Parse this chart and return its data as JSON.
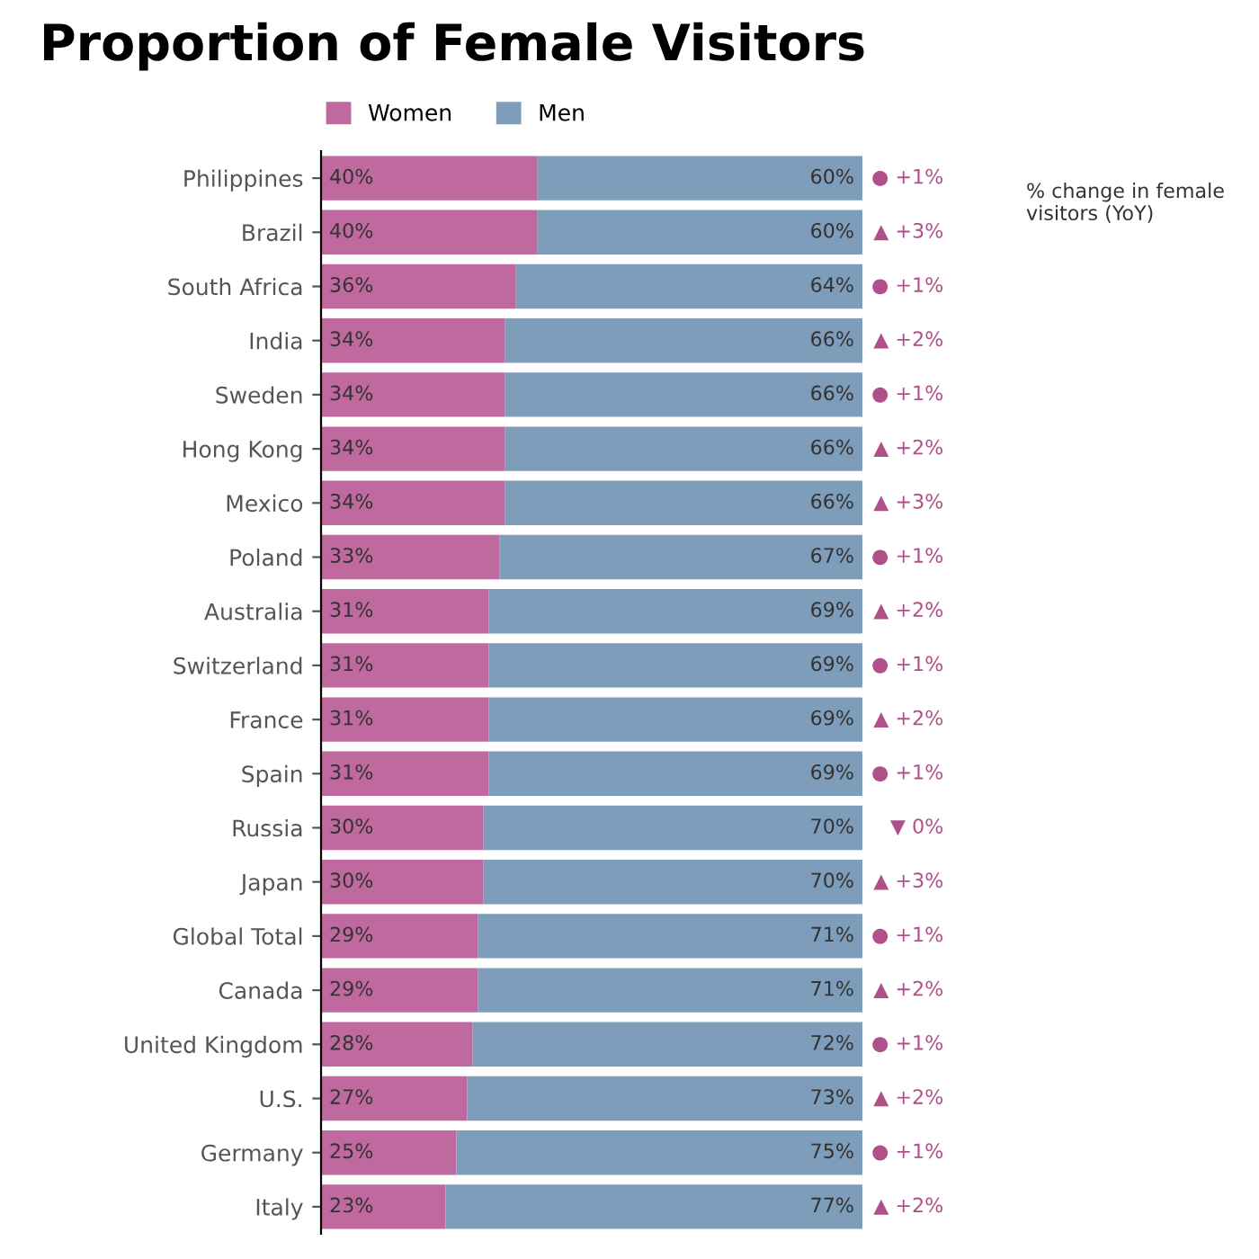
{
  "chart_data": {
    "type": "bar",
    "orientation": "horizontal",
    "stacked": true,
    "title": "Proportion of Female Visitors",
    "categories": [
      "Philippines",
      "Brazil",
      "South Africa",
      "India",
      "Sweden",
      "Hong Kong",
      "Mexico",
      "Poland",
      "Australia",
      "Switzerland",
      "France",
      "Spain",
      "Russia",
      "Japan",
      "Global Total",
      "Canada",
      "United Kingdom",
      "U.S.",
      "Germany",
      "Italy"
    ],
    "series": [
      {
        "name": "Women",
        "color": "#c0699e",
        "values": [
          40,
          40,
          36,
          34,
          34,
          34,
          34,
          33,
          31,
          31,
          31,
          31,
          30,
          30,
          29,
          29,
          28,
          27,
          25,
          23
        ],
        "value_labels": [
          "40%",
          "40%",
          "36%",
          "34%",
          "34%",
          "34%",
          "34%",
          "33%",
          "31%",
          "31%",
          "31%",
          "31%",
          "30%",
          "30%",
          "29%",
          "29%",
          "28%",
          "27%",
          "25%",
          "23%"
        ]
      },
      {
        "name": "Men",
        "color": "#7d9dbb",
        "values": [
          60,
          60,
          64,
          66,
          66,
          66,
          66,
          67,
          69,
          69,
          69,
          69,
          70,
          70,
          71,
          71,
          72,
          73,
          75,
          77
        ],
        "value_labels": [
          "60%",
          "60%",
          "64%",
          "66%",
          "66%",
          "66%",
          "66%",
          "67%",
          "69%",
          "69%",
          "69%",
          "69%",
          "70%",
          "70%",
          "71%",
          "71%",
          "72%",
          "73%",
          "75%",
          "77%"
        ]
      }
    ],
    "tick_labels": "y",
    "legend": "top",
    "annotations": [
      "% change in female visitors (YoY)",
      "● +1%",
      "▲ +3%",
      "● +1%",
      "▲ +2%",
      "● +1%",
      "▲ +2%",
      "▲ +3%",
      "● +1%",
      "▲ +2%",
      "● +1%",
      "▲ +2%",
      "● +1%",
      "▼ 0%",
      "▲ +3%",
      "● +1%",
      "▲ +2%",
      "● +1%",
      "▲ +2%",
      "● +1%",
      "▲ +2%"
    ]
  }
}
